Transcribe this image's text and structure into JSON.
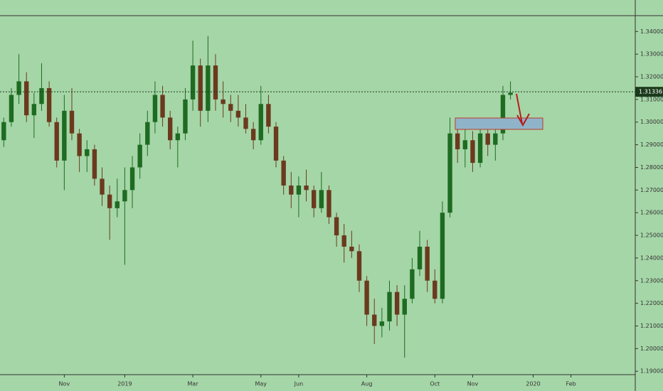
{
  "chart_data": {
    "type": "candlestick",
    "categories": [
      null,
      null,
      null,
      null,
      null,
      null,
      null,
      null,
      "Nov",
      null,
      null,
      null,
      null,
      null,
      null,
      null,
      "2019",
      null,
      null,
      null,
      null,
      null,
      null,
      null,
      null,
      "Mar",
      null,
      null,
      null,
      null,
      null,
      null,
      null,
      null,
      "May",
      null,
      null,
      null,
      null,
      "Jun",
      null,
      null,
      null,
      null,
      null,
      null,
      null,
      null,
      "Aug",
      null,
      null,
      null,
      null,
      null,
      null,
      null,
      null,
      "Oct",
      null,
      null,
      null,
      null,
      "Nov",
      null,
      null,
      null,
      null,
      null,
      null,
      null,
      "2020",
      null,
      null,
      null,
      null,
      "Feb",
      null,
      null,
      null,
      null,
      null,
      null,
      null,
      null
    ],
    "open": [
      1.292,
      1.3,
      1.312,
      1.318,
      1.303,
      1.308,
      1.315,
      1.3,
      1.283,
      1.305,
      1.295,
      1.285,
      1.288,
      1.275,
      1.268,
      1.262,
      1.265,
      1.27,
      1.28,
      1.29,
      1.3,
      1.312,
      1.302,
      1.292,
      1.295,
      1.31,
      1.325,
      1.305,
      1.325,
      1.31,
      1.308,
      1.305,
      1.302,
      1.297,
      1.292,
      1.308,
      1.298,
      1.283,
      1.272,
      1.268,
      1.272,
      1.27,
      1.262,
      1.27,
      1.258,
      1.25,
      1.245,
      1.243,
      1.23,
      1.215,
      1.21,
      1.212,
      1.225,
      1.215,
      1.222,
      1.235,
      1.245,
      1.23,
      1.222,
      1.26,
      1.295,
      1.288,
      1.292,
      1.282,
      1.295,
      1.29,
      1.295,
      1.312,
      null,
      null,
      null,
      null,
      null,
      null,
      null,
      null,
      null,
      null,
      null,
      null,
      null,
      null,
      null,
      null
    ],
    "high": [
      1.302,
      1.315,
      1.33,
      1.322,
      1.313,
      1.326,
      1.318,
      1.302,
      1.312,
      1.315,
      1.297,
      1.292,
      1.29,
      1.28,
      1.272,
      1.275,
      1.28,
      1.285,
      1.295,
      1.305,
      1.318,
      1.316,
      1.305,
      1.298,
      1.315,
      1.336,
      1.328,
      1.338,
      1.33,
      1.318,
      1.312,
      1.312,
      1.308,
      1.3,
      1.316,
      1.312,
      1.3,
      1.285,
      1.278,
      1.276,
      1.279,
      1.272,
      1.278,
      1.272,
      1.26,
      1.255,
      1.252,
      1.246,
      1.232,
      1.222,
      1.218,
      1.23,
      1.228,
      1.228,
      1.24,
      1.252,
      1.248,
      1.235,
      1.265,
      1.302,
      1.302,
      1.298,
      1.296,
      1.298,
      1.3,
      1.298,
      1.316,
      1.318,
      null,
      null,
      null,
      null,
      null,
      null,
      null,
      null,
      null,
      null,
      null,
      null,
      null,
      null,
      null,
      null
    ],
    "low": [
      1.289,
      1.298,
      1.308,
      1.3,
      1.293,
      1.305,
      1.298,
      1.28,
      1.27,
      1.292,
      1.278,
      1.278,
      1.272,
      1.263,
      1.248,
      1.258,
      1.237,
      1.262,
      1.275,
      1.285,
      1.295,
      1.298,
      1.288,
      1.28,
      1.292,
      1.305,
      1.298,
      1.3,
      1.305,
      1.302,
      1.3,
      1.298,
      1.295,
      1.288,
      1.29,
      1.295,
      1.28,
      1.268,
      1.262,
      1.258,
      1.265,
      1.258,
      1.26,
      1.255,
      1.245,
      1.238,
      1.24,
      1.225,
      1.21,
      1.202,
      1.205,
      1.208,
      1.21,
      1.196,
      1.22,
      1.232,
      1.225,
      1.22,
      1.22,
      1.258,
      1.282,
      1.28,
      1.278,
      1.28,
      1.285,
      1.283,
      1.292,
      1.31,
      null,
      null,
      null,
      null,
      null,
      null,
      null,
      null,
      null,
      null,
      null,
      null,
      null,
      null,
      null,
      null
    ],
    "close": [
      1.3,
      1.312,
      1.318,
      1.303,
      1.308,
      1.315,
      1.3,
      1.283,
      1.305,
      1.295,
      1.285,
      1.288,
      1.275,
      1.268,
      1.262,
      1.265,
      1.27,
      1.28,
      1.29,
      1.3,
      1.312,
      1.302,
      1.292,
      1.295,
      1.31,
      1.325,
      1.305,
      1.325,
      1.31,
      1.308,
      1.305,
      1.302,
      1.297,
      1.292,
      1.308,
      1.298,
      1.283,
      1.272,
      1.268,
      1.272,
      1.27,
      1.262,
      1.27,
      1.258,
      1.25,
      1.245,
      1.243,
      1.23,
      1.215,
      1.21,
      1.212,
      1.225,
      1.215,
      1.222,
      1.235,
      1.245,
      1.23,
      1.222,
      1.26,
      1.295,
      1.288,
      1.292,
      1.282,
      1.295,
      1.29,
      1.295,
      1.312,
      1.313,
      null,
      null,
      null,
      null,
      null,
      null,
      null,
      null,
      null,
      null,
      null,
      null,
      null,
      null,
      null,
      null
    ],
    "up_color": "#1e6b22",
    "down_color": "#6b3a1e",
    "ylim": [
      1.1885,
      1.347
    ],
    "yticks": [
      {
        "value": 1.19,
        "label": "1.19000"
      },
      {
        "value": 1.2,
        "label": "1.20000"
      },
      {
        "value": 1.21,
        "label": "1.21000"
      },
      {
        "value": 1.22,
        "label": "1.22000"
      },
      {
        "value": 1.23,
        "label": "1.23000"
      },
      {
        "value": 1.24,
        "label": "1.24000"
      },
      {
        "value": 1.25,
        "label": "1.25000"
      },
      {
        "value": 1.26,
        "label": "1.26000"
      },
      {
        "value": 1.27,
        "label": "1.27000"
      },
      {
        "value": 1.28,
        "label": "1.28000"
      },
      {
        "value": 1.29,
        "label": "1.29000"
      },
      {
        "value": 1.3,
        "label": "1.30000"
      },
      {
        "value": 1.31,
        "label": "1.31000"
      },
      {
        "value": 1.32,
        "label": "1.32000"
      },
      {
        "value": 1.33,
        "label": "1.33000"
      },
      {
        "value": 1.34,
        "label": "1.34000"
      }
    ],
    "last_price": 1.31336
  }
}
